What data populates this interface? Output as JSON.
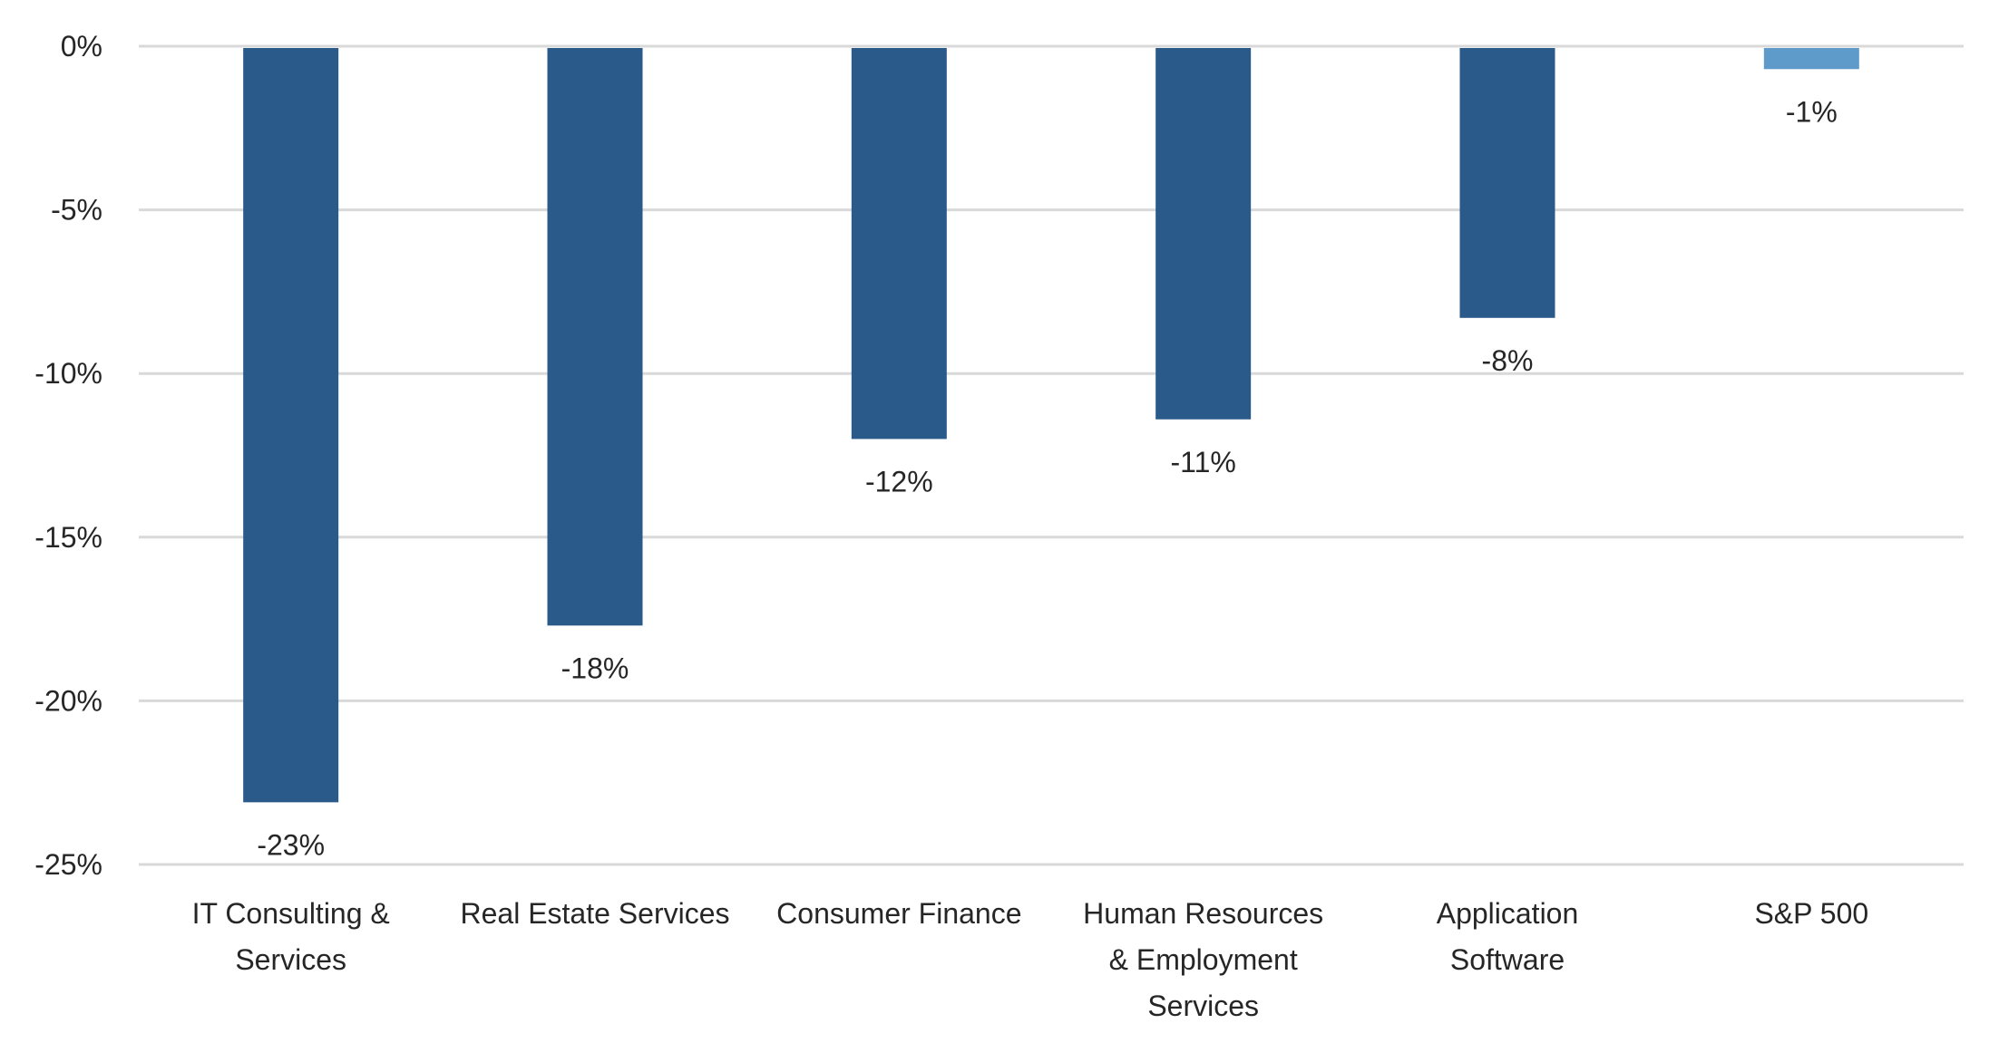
{
  "chart_data": {
    "type": "bar",
    "title": "",
    "xlabel": "",
    "ylabel": "",
    "categories": [
      [
        "IT Consulting &",
        "Services"
      ],
      [
        "Real Estate Services"
      ],
      [
        "Consumer Finance"
      ],
      [
        "Human Resources",
        "& Employment",
        "Services"
      ],
      [
        "Application",
        "Software"
      ],
      [
        "S&P 500"
      ]
    ],
    "values": [
      -23.1,
      -17.7,
      -12.0,
      -11.4,
      -8.3,
      -0.7
    ],
    "data_labels": [
      "-23%",
      "-18%",
      "-12%",
      "-11%",
      "-8%",
      "-1%"
    ],
    "colors": [
      "#2A5A8A",
      "#2A5A8A",
      "#2A5A8A",
      "#2A5A8A",
      "#2A5A8A",
      "#5E9BCB"
    ],
    "ylim": [
      -25,
      0
    ],
    "yticks": [
      0,
      -5,
      -10,
      -15,
      -20,
      -25
    ],
    "ytick_labels": [
      "0%",
      "-5%",
      "-10%",
      "-15%",
      "-20%",
      "-25%"
    ],
    "grid": true,
    "legend": "none"
  }
}
